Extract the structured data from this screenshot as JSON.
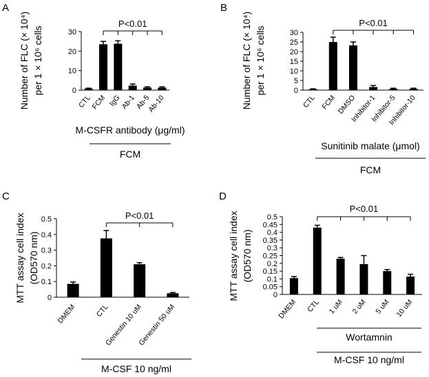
{
  "chart_data": [
    {
      "panel": "A",
      "type": "bar",
      "ylabel_lines": [
        "Number of FLC (× 10⁴)",
        "per 1 × 10⁶ cells"
      ],
      "ylim": [
        0,
        30
      ],
      "yticks": [
        0,
        10,
        20,
        30
      ],
      "categories": [
        "CTL",
        "FCM",
        "IgG",
        "Ab-1",
        "Ab-5",
        "Ab-10"
      ],
      "values": [
        0.8,
        23.5,
        23.8,
        2.3,
        1.3,
        1.3
      ],
      "errors": [
        0.2,
        1.5,
        1.5,
        0.8,
        0.4,
        0.4
      ],
      "significance": {
        "label": "P<0.01",
        "from": 1,
        "to": [
          2,
          3,
          4,
          5
        ]
      },
      "groups": [
        {
          "label": "M-CSFR antibody (μg/ml)",
          "from": 2,
          "to": 5
        },
        {
          "label": "FCM",
          "from": 2,
          "to": 5
        }
      ]
    },
    {
      "panel": "B",
      "type": "bar",
      "ylabel_lines": [
        "Number of FLC (× 10⁴)",
        "per 1 × 10⁶ cells"
      ],
      "ylim": [
        0,
        30
      ],
      "yticks": [
        0,
        5,
        10,
        15,
        20,
        25,
        30
      ],
      "categories": [
        "CTL",
        "FCM",
        "DMSO",
        "Inhibitor-1",
        "Inhibitor-5",
        "Inhibitor-10"
      ],
      "values": [
        0.5,
        25,
        23.2,
        1.6,
        0.7,
        0.7
      ],
      "errors": [
        0.2,
        2.5,
        1.8,
        0.8,
        0.3,
        0.3
      ],
      "significance": {
        "label": "P<0.01",
        "from": 1,
        "to": [
          2,
          3,
          4,
          5
        ]
      },
      "groups": [
        {
          "label": "Sunitinib malate (μmol)",
          "from": 2,
          "to": 5
        },
        {
          "label": "FCM",
          "from": 2,
          "to": 5
        }
      ]
    },
    {
      "panel": "C",
      "type": "bar",
      "ylabel_lines": [
        "MTT assay cell index",
        "(OD570 nm)"
      ],
      "ylim": [
        0,
        0.5
      ],
      "yticks": [
        0,
        0.1,
        0.2,
        0.3,
        0.4,
        0.5
      ],
      "categories": [
        "DMEM",
        "CTL",
        "Genestin 10 uM",
        "Genestin 50 uM"
      ],
      "values": [
        0.085,
        0.375,
        0.21,
        0.025
      ],
      "errors": [
        0.012,
        0.05,
        0.01,
        0.005
      ],
      "significance": {
        "label": "P<0.01",
        "from": 1,
        "to": [
          2,
          3
        ]
      },
      "groups": [
        {
          "label": "M-CSF 10 ng/ml",
          "from": 1,
          "to": 3
        }
      ]
    },
    {
      "panel": "D",
      "type": "bar",
      "ylabel_lines": [
        "MTT assay cell index",
        "(OD570 nm)"
      ],
      "ylim": [
        0,
        0.5
      ],
      "yticks": [
        0,
        0.05,
        0.1,
        0.15,
        0.2,
        0.25,
        0.3,
        0.35,
        0.4,
        0.45,
        0.5
      ],
      "categories": [
        "DMEM",
        "CTL",
        "1 uM",
        "2 uM",
        "5 uM",
        "10 uM"
      ],
      "values": [
        0.105,
        0.43,
        0.23,
        0.195,
        0.15,
        0.115
      ],
      "errors": [
        0.01,
        0.015,
        0.008,
        0.055,
        0.01,
        0.015
      ],
      "significance": {
        "label": "P<0.01",
        "from": 1,
        "to": [
          2,
          3,
          4,
          5
        ]
      },
      "groups": [
        {
          "label": "Wortamnin",
          "from": 2,
          "to": 5
        },
        {
          "label": "M-CSF 10 ng/ml",
          "from": 1,
          "to": 5
        }
      ]
    }
  ]
}
